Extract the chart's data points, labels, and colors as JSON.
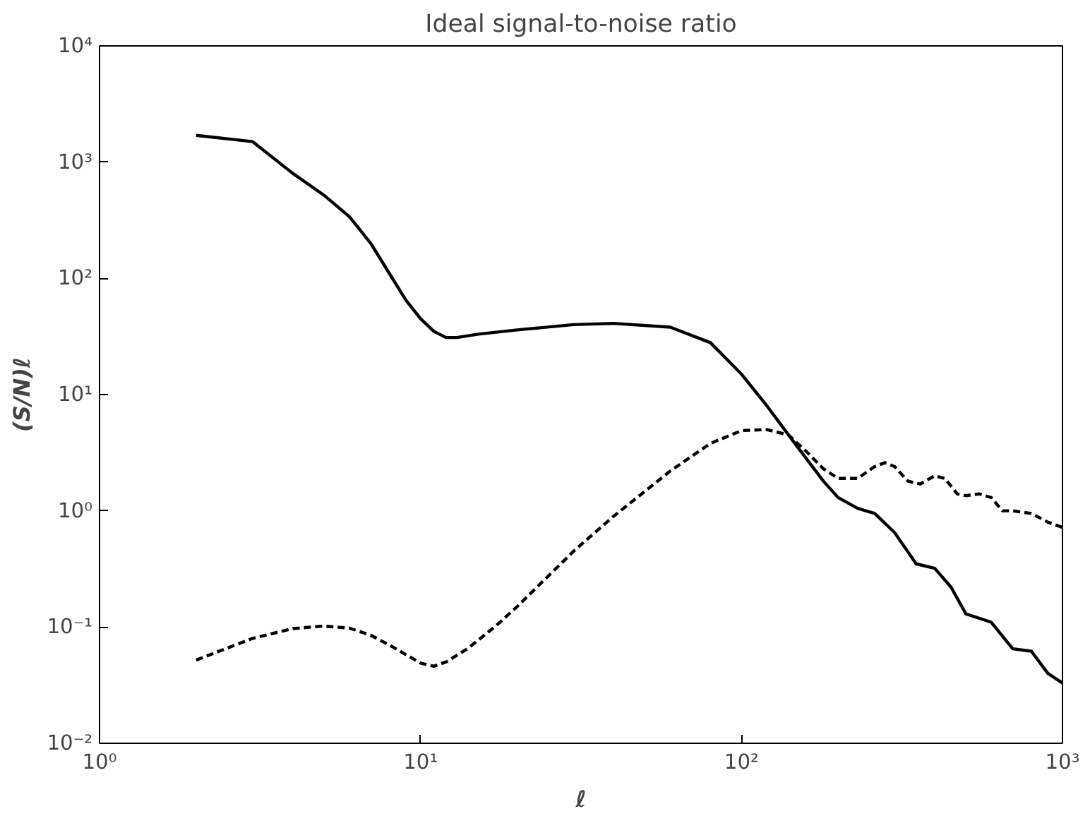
{
  "chart_data": {
    "type": "line",
    "title": "Ideal signal-to-noise ratio",
    "xlabel": "ℓ",
    "ylabel": "(S/N)ℓ",
    "log": "xy",
    "grid": false,
    "xlim": [
      1,
      1000
    ],
    "ylim": [
      0.01,
      10000
    ],
    "xticks": [
      {
        "value": 1,
        "label": "10⁰"
      },
      {
        "value": 10,
        "label": "10¹"
      },
      {
        "value": 100,
        "label": "10²"
      },
      {
        "value": 1000,
        "label": "10³"
      }
    ],
    "yticks": [
      {
        "value": 0.01,
        "label": "10⁻²"
      },
      {
        "value": 0.1,
        "label": "10⁻¹"
      },
      {
        "value": 1,
        "label": "10⁰"
      },
      {
        "value": 10,
        "label": "10¹"
      },
      {
        "value": 100,
        "label": "10²"
      },
      {
        "value": 1000,
        "label": "10³"
      },
      {
        "value": 10000,
        "label": "10⁴"
      }
    ],
    "series": [
      {
        "color": "#000000",
        "line_style": "solid",
        "x": [
          2,
          3,
          4,
          5,
          6,
          7,
          8,
          9,
          10,
          11,
          12,
          13,
          15,
          20,
          30,
          40,
          60,
          80,
          100,
          120,
          150,
          180,
          200,
          230,
          260,
          300,
          350,
          400,
          450,
          500,
          600,
          700,
          800,
          900,
          1000
        ],
        "values": [
          1700,
          1500,
          800,
          520,
          340,
          200,
          110,
          65,
          45,
          35,
          31,
          31,
          33,
          36,
          40,
          41,
          38,
          28,
          15,
          8,
          3.5,
          1.8,
          1.3,
          1.05,
          0.95,
          0.65,
          0.35,
          0.32,
          0.22,
          0.13,
          0.11,
          0.065,
          0.062,
          0.04,
          0.033
        ]
      },
      {
        "color": "#000000",
        "line_style": "dashed",
        "x": [
          2,
          3,
          4,
          5,
          6,
          7,
          8,
          9,
          10,
          11,
          12,
          14,
          17,
          20,
          30,
          40,
          60,
          80,
          100,
          120,
          140,
          160,
          180,
          200,
          230,
          260,
          280,
          300,
          330,
          360,
          400,
          430,
          470,
          500,
          550,
          600,
          650,
          700,
          800,
          900,
          1000
        ],
        "values": [
          0.052,
          0.08,
          0.097,
          0.102,
          0.098,
          0.085,
          0.07,
          0.058,
          0.049,
          0.046,
          0.05,
          0.065,
          0.1,
          0.15,
          0.45,
          0.9,
          2.2,
          3.8,
          4.9,
          5.0,
          4.5,
          3.2,
          2.3,
          1.9,
          1.9,
          2.4,
          2.6,
          2.4,
          1.8,
          1.7,
          2.0,
          1.9,
          1.4,
          1.35,
          1.4,
          1.3,
          1.0,
          1.0,
          0.95,
          0.8,
          0.72
        ]
      }
    ]
  }
}
